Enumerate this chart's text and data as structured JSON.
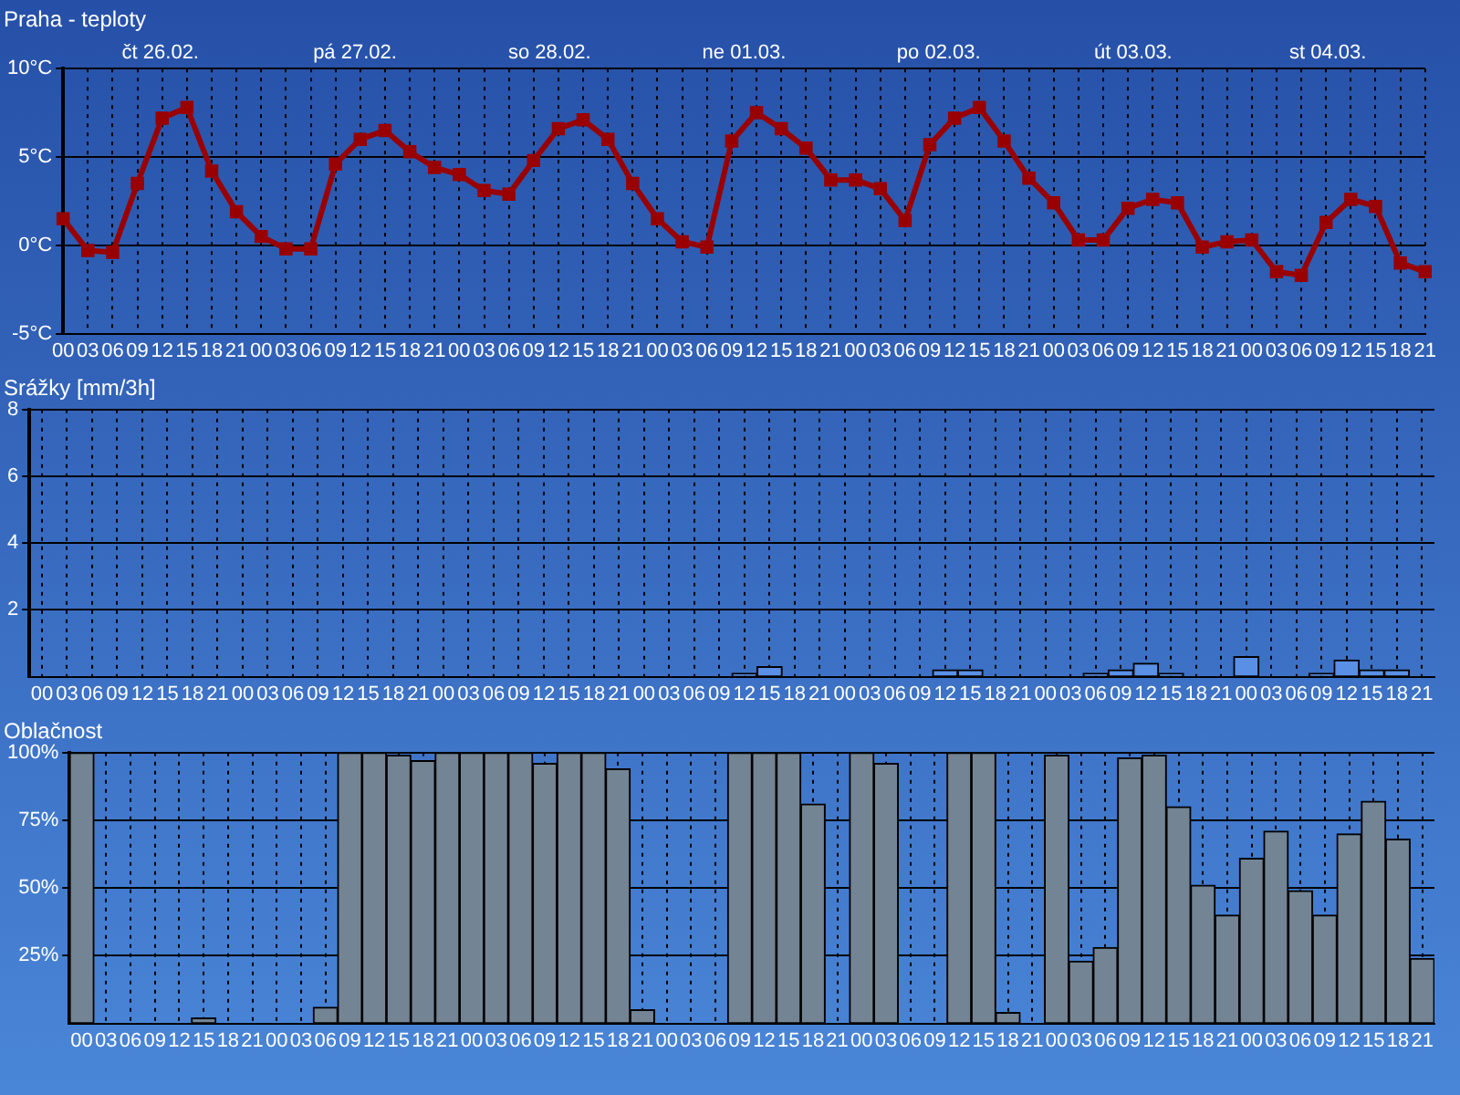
{
  "chart_data": [
    {
      "type": "line",
      "title": "Praha - teploty",
      "marker": "square",
      "grid": true,
      "annotations": [
        "čt 26.02.",
        "pá 27.02.",
        "so 28.02.",
        "ne 01.03.",
        "po 02.03.",
        "út 03.03.",
        "st 04.03."
      ],
      "categories": [
        "00",
        "03",
        "06",
        "09",
        "12",
        "15",
        "18",
        "21",
        "00",
        "03",
        "06",
        "09",
        "12",
        "15",
        "18",
        "21",
        "00",
        "03",
        "06",
        "09",
        "12",
        "15",
        "18",
        "21",
        "00",
        "03",
        "06",
        "09",
        "12",
        "15",
        "18",
        "21",
        "00",
        "03",
        "06",
        "09",
        "12",
        "15",
        "18",
        "21",
        "00",
        "03",
        "06",
        "09",
        "12",
        "15",
        "18",
        "21",
        "00",
        "03",
        "06",
        "09",
        "12",
        "15",
        "18",
        "21"
      ],
      "ylim": [
        -5,
        10
      ],
      "yticks": [
        {
          "value": -5,
          "label": "-5°C"
        },
        {
          "value": 0,
          "label": "0°C"
        },
        {
          "value": 5,
          "label": "5°C"
        },
        {
          "value": 10,
          "label": "10°C"
        }
      ],
      "color": "#990000",
      "values": [
        1.5,
        -0.3,
        -0.4,
        3.5,
        7.2,
        7.8,
        4.2,
        1.9,
        0.5,
        -0.2,
        -0.2,
        4.6,
        6.0,
        6.5,
        5.3,
        4.4,
        4.0,
        3.1,
        2.9,
        4.8,
        6.6,
        7.1,
        6.0,
        3.5,
        1.5,
        0.2,
        -0.1,
        5.9,
        7.5,
        6.6,
        5.5,
        3.7,
        3.7,
        3.2,
        1.4,
        5.7,
        7.2,
        7.8,
        5.9,
        3.8,
        2.4,
        0.3,
        0.3,
        2.1,
        2.6,
        2.4,
        -0.1,
        0.2,
        0.3,
        -1.5,
        -1.7,
        1.3,
        2.6,
        2.2,
        -1.0,
        -1.5
      ]
    },
    {
      "type": "bar",
      "title": "Srážky [mm/3h]",
      "grid": true,
      "categories": [
        "00",
        "03",
        "06",
        "09",
        "12",
        "15",
        "18",
        "21",
        "00",
        "03",
        "06",
        "09",
        "12",
        "15",
        "18",
        "21",
        "00",
        "03",
        "06",
        "09",
        "12",
        "15",
        "18",
        "21",
        "00",
        "03",
        "06",
        "09",
        "12",
        "15",
        "18",
        "21",
        "00",
        "03",
        "06",
        "09",
        "12",
        "15",
        "18",
        "21",
        "00",
        "03",
        "06",
        "09",
        "12",
        "15",
        "18",
        "21",
        "00",
        "03",
        "06",
        "09",
        "12",
        "15",
        "18",
        "21"
      ],
      "ylim": [
        0,
        8
      ],
      "yticks": [
        2,
        4,
        6,
        8
      ],
      "color": "#5a8fe6",
      "values": [
        0,
        0,
        0,
        0,
        0,
        0,
        0,
        0,
        0,
        0,
        0,
        0,
        0,
        0,
        0,
        0,
        0,
        0,
        0,
        0,
        0,
        0,
        0,
        0,
        0,
        0,
        0,
        0,
        0.1,
        0.3,
        0,
        0,
        0,
        0,
        0,
        0,
        0.2,
        0.2,
        0,
        0,
        0,
        0,
        0.1,
        0.2,
        0.4,
        0.1,
        0,
        0,
        0.6,
        0,
        0,
        0.1,
        0.5,
        0.2,
        0.2,
        0
      ]
    },
    {
      "type": "bar",
      "title": "Oblačnost",
      "grid": true,
      "categories": [
        "00",
        "03",
        "06",
        "09",
        "12",
        "15",
        "18",
        "21",
        "00",
        "03",
        "06",
        "09",
        "12",
        "15",
        "18",
        "21",
        "00",
        "03",
        "06",
        "09",
        "12",
        "15",
        "18",
        "21",
        "00",
        "03",
        "06",
        "09",
        "12",
        "15",
        "18",
        "21",
        "00",
        "03",
        "06",
        "09",
        "12",
        "15",
        "18",
        "21",
        "00",
        "03",
        "06",
        "09",
        "12",
        "15",
        "18",
        "21",
        "00",
        "03",
        "06",
        "09",
        "12",
        "15",
        "18",
        "21"
      ],
      "ylim": [
        0,
        100
      ],
      "yticks": [
        {
          "value": 25,
          "label": "25%"
        },
        {
          "value": 50,
          "label": "50%"
        },
        {
          "value": 75,
          "label": "75%"
        },
        {
          "value": 100,
          "label": "100%"
        }
      ],
      "color": "#738494",
      "values": [
        100,
        0,
        0,
        0,
        0,
        2,
        0,
        0,
        0,
        0,
        6,
        100,
        100,
        99,
        97,
        100,
        100,
        100,
        100,
        96,
        100,
        100,
        94,
        5,
        0,
        0,
        0,
        100,
        100,
        100,
        81,
        0,
        100,
        96,
        0,
        0,
        100,
        100,
        4,
        0,
        99,
        23,
        28,
        98,
        99,
        80,
        51,
        40,
        61,
        71,
        49,
        40,
        70,
        82,
        68,
        24
      ]
    }
  ]
}
